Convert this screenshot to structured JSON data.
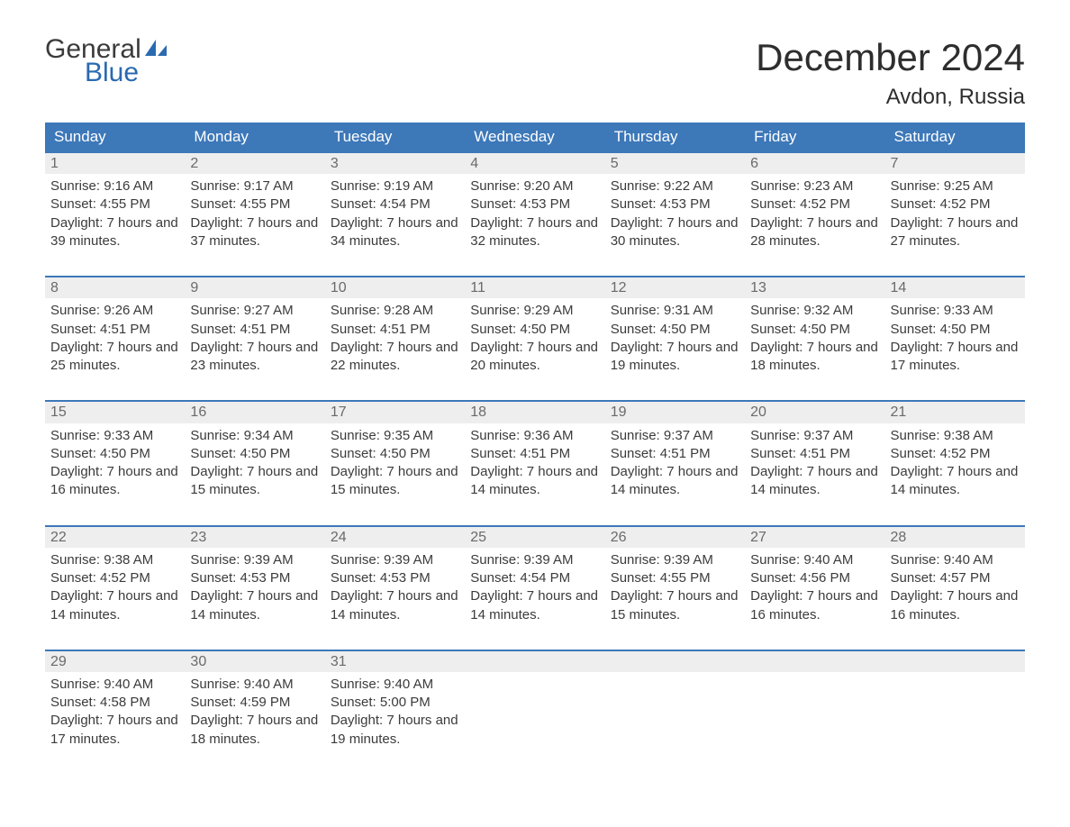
{
  "brand": {
    "word1": "General",
    "word2": "Blue"
  },
  "title": "December 2024",
  "location": "Avdon, Russia",
  "colors": {
    "header_bg": "#3d78b9",
    "header_text": "#ffffff",
    "daynum_bg": "#eeeeee",
    "daynum_text": "#6a6a6a",
    "body_text": "#3b3b3b",
    "rule": "#3d78b9",
    "brand_blue": "#2a6ab0"
  },
  "weekdays": [
    "Sunday",
    "Monday",
    "Tuesday",
    "Wednesday",
    "Thursday",
    "Friday",
    "Saturday"
  ],
  "weeks": [
    [
      {
        "n": "1",
        "sunrise": "9:16 AM",
        "sunset": "4:55 PM",
        "daylight": "7 hours and 39 minutes."
      },
      {
        "n": "2",
        "sunrise": "9:17 AM",
        "sunset": "4:55 PM",
        "daylight": "7 hours and 37 minutes."
      },
      {
        "n": "3",
        "sunrise": "9:19 AM",
        "sunset": "4:54 PM",
        "daylight": "7 hours and 34 minutes."
      },
      {
        "n": "4",
        "sunrise": "9:20 AM",
        "sunset": "4:53 PM",
        "daylight": "7 hours and 32 minutes."
      },
      {
        "n": "5",
        "sunrise": "9:22 AM",
        "sunset": "4:53 PM",
        "daylight": "7 hours and 30 minutes."
      },
      {
        "n": "6",
        "sunrise": "9:23 AM",
        "sunset": "4:52 PM",
        "daylight": "7 hours and 28 minutes."
      },
      {
        "n": "7",
        "sunrise": "9:25 AM",
        "sunset": "4:52 PM",
        "daylight": "7 hours and 27 minutes."
      }
    ],
    [
      {
        "n": "8",
        "sunrise": "9:26 AM",
        "sunset": "4:51 PM",
        "daylight": "7 hours and 25 minutes."
      },
      {
        "n": "9",
        "sunrise": "9:27 AM",
        "sunset": "4:51 PM",
        "daylight": "7 hours and 23 minutes."
      },
      {
        "n": "10",
        "sunrise": "9:28 AM",
        "sunset": "4:51 PM",
        "daylight": "7 hours and 22 minutes."
      },
      {
        "n": "11",
        "sunrise": "9:29 AM",
        "sunset": "4:50 PM",
        "daylight": "7 hours and 20 minutes."
      },
      {
        "n": "12",
        "sunrise": "9:31 AM",
        "sunset": "4:50 PM",
        "daylight": "7 hours and 19 minutes."
      },
      {
        "n": "13",
        "sunrise": "9:32 AM",
        "sunset": "4:50 PM",
        "daylight": "7 hours and 18 minutes."
      },
      {
        "n": "14",
        "sunrise": "9:33 AM",
        "sunset": "4:50 PM",
        "daylight": "7 hours and 17 minutes."
      }
    ],
    [
      {
        "n": "15",
        "sunrise": "9:33 AM",
        "sunset": "4:50 PM",
        "daylight": "7 hours and 16 minutes."
      },
      {
        "n": "16",
        "sunrise": "9:34 AM",
        "sunset": "4:50 PM",
        "daylight": "7 hours and 15 minutes."
      },
      {
        "n": "17",
        "sunrise": "9:35 AM",
        "sunset": "4:50 PM",
        "daylight": "7 hours and 15 minutes."
      },
      {
        "n": "18",
        "sunrise": "9:36 AM",
        "sunset": "4:51 PM",
        "daylight": "7 hours and 14 minutes."
      },
      {
        "n": "19",
        "sunrise": "9:37 AM",
        "sunset": "4:51 PM",
        "daylight": "7 hours and 14 minutes."
      },
      {
        "n": "20",
        "sunrise": "9:37 AM",
        "sunset": "4:51 PM",
        "daylight": "7 hours and 14 minutes."
      },
      {
        "n": "21",
        "sunrise": "9:38 AM",
        "sunset": "4:52 PM",
        "daylight": "7 hours and 14 minutes."
      }
    ],
    [
      {
        "n": "22",
        "sunrise": "9:38 AM",
        "sunset": "4:52 PM",
        "daylight": "7 hours and 14 minutes."
      },
      {
        "n": "23",
        "sunrise": "9:39 AM",
        "sunset": "4:53 PM",
        "daylight": "7 hours and 14 minutes."
      },
      {
        "n": "24",
        "sunrise": "9:39 AM",
        "sunset": "4:53 PM",
        "daylight": "7 hours and 14 minutes."
      },
      {
        "n": "25",
        "sunrise": "9:39 AM",
        "sunset": "4:54 PM",
        "daylight": "7 hours and 14 minutes."
      },
      {
        "n": "26",
        "sunrise": "9:39 AM",
        "sunset": "4:55 PM",
        "daylight": "7 hours and 15 minutes."
      },
      {
        "n": "27",
        "sunrise": "9:40 AM",
        "sunset": "4:56 PM",
        "daylight": "7 hours and 16 minutes."
      },
      {
        "n": "28",
        "sunrise": "9:40 AM",
        "sunset": "4:57 PM",
        "daylight": "7 hours and 16 minutes."
      }
    ],
    [
      {
        "n": "29",
        "sunrise": "9:40 AM",
        "sunset": "4:58 PM",
        "daylight": "7 hours and 17 minutes."
      },
      {
        "n": "30",
        "sunrise": "9:40 AM",
        "sunset": "4:59 PM",
        "daylight": "7 hours and 18 minutes."
      },
      {
        "n": "31",
        "sunrise": "9:40 AM",
        "sunset": "5:00 PM",
        "daylight": "7 hours and 19 minutes."
      },
      null,
      null,
      null,
      null
    ]
  ],
  "labels": {
    "sunrise": "Sunrise:",
    "sunset": "Sunset:",
    "daylight": "Daylight:"
  }
}
